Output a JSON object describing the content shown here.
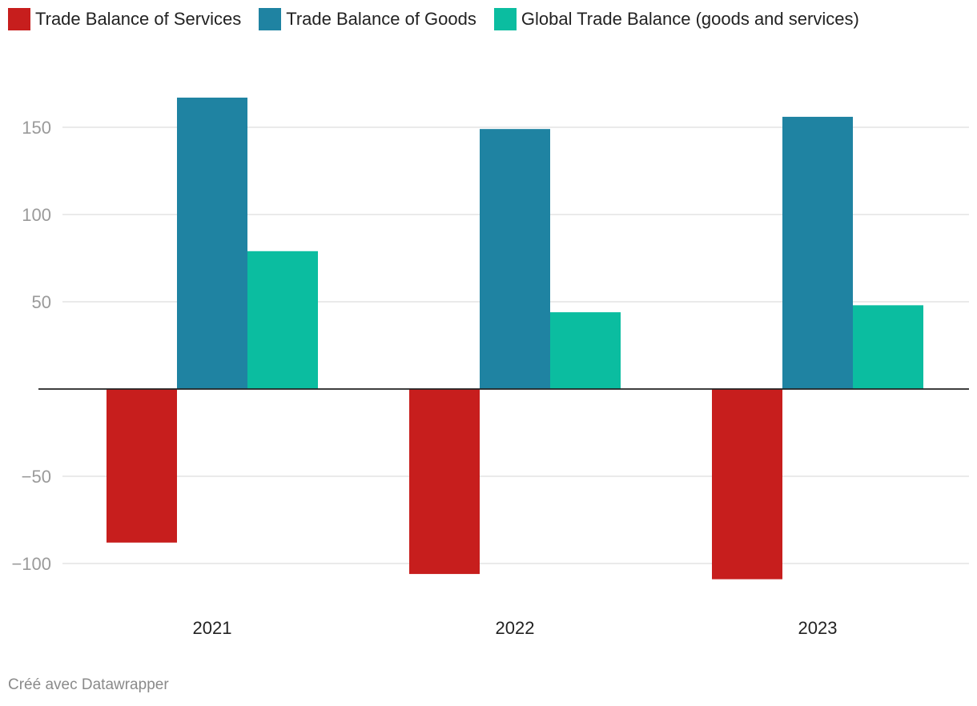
{
  "chart_data": {
    "type": "bar",
    "title": "",
    "xlabel": "",
    "ylabel": "",
    "categories": [
      "2021",
      "2022",
      "2023"
    ],
    "series": [
      {
        "name": "Trade Balance of Services",
        "color": "#c71e1d",
        "values": [
          -88,
          -106,
          -109
        ]
      },
      {
        "name": "Trade Balance of Goods",
        "color": "#1f83a2",
        "values": [
          167,
          149,
          156
        ]
      },
      {
        "name": "Global Trade Balance (goods and services)",
        "color": "#0bbda0",
        "values": [
          79,
          44,
          48
        ]
      }
    ],
    "yticks": [
      150,
      100,
      50,
      -50,
      -100
    ],
    "ytick_labels": [
      "150",
      "100",
      "50",
      "−50",
      "−100"
    ],
    "ylim": [
      -120,
      175
    ],
    "grid": true,
    "legend": "top-left"
  },
  "footer": {
    "credit": "Créé avec Datawrapper"
  }
}
